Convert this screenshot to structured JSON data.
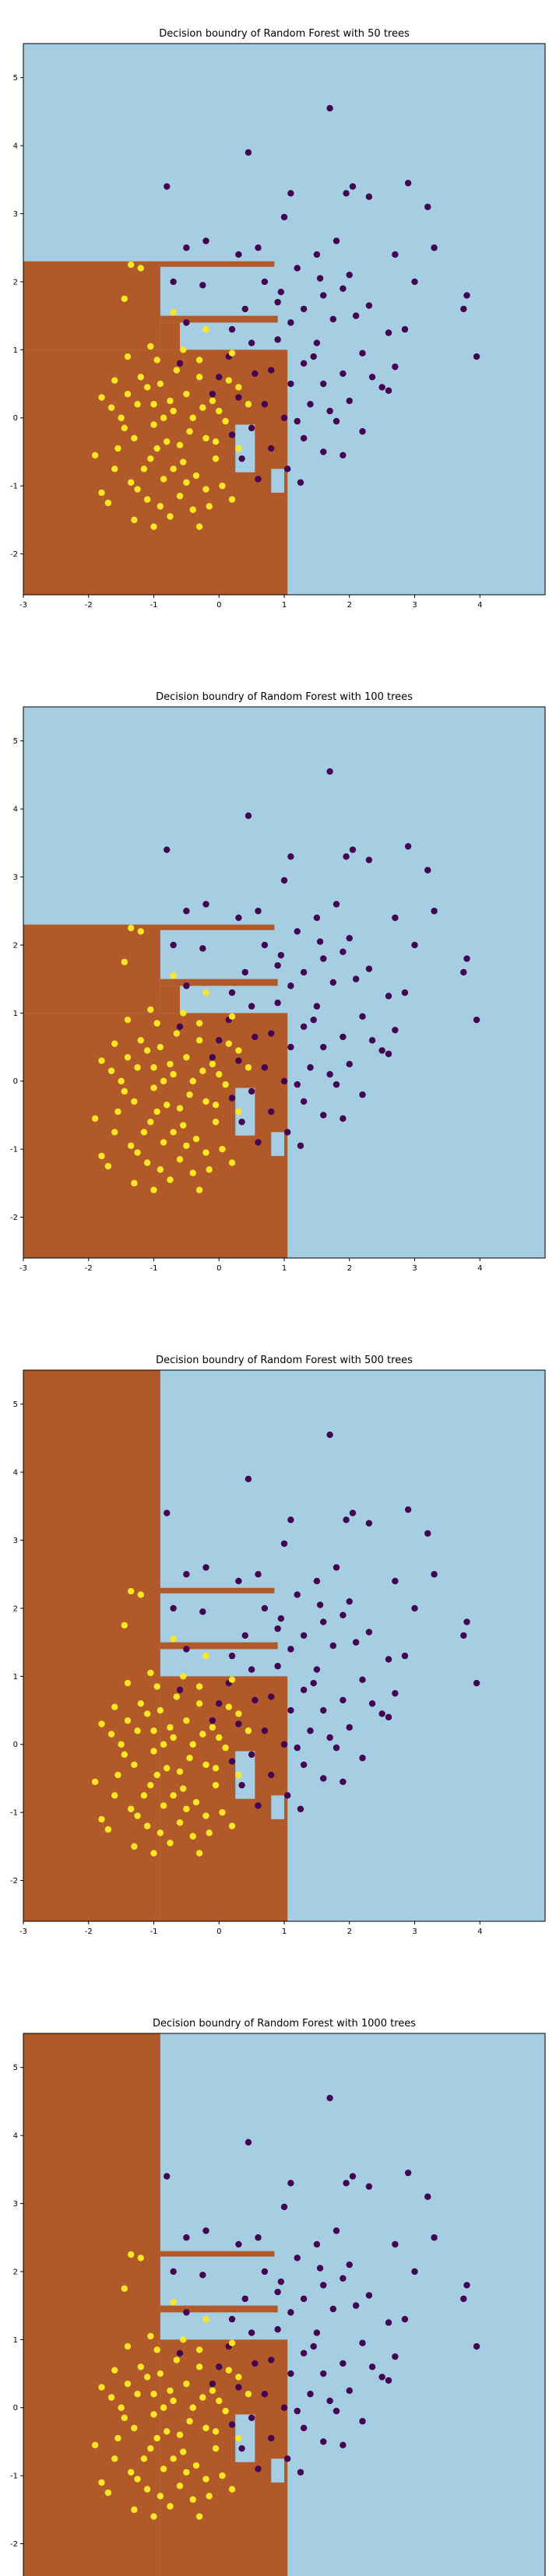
{
  "figure": {
    "background": "#ffffff"
  },
  "colors": {
    "region_class0": "#a6cee3",
    "region_class1": "#b15928",
    "point_class0": "#440154",
    "point_class1": "#fde725",
    "point_edge": "#3b0f4f"
  },
  "chart_data": [
    {
      "type": "scatter",
      "title": "Decision boundry of Random Forest with 50 trees",
      "xlim": [
        -3,
        5
      ],
      "ylim": [
        -2.6,
        5.5
      ],
      "xticks": [
        "-3",
        "-2",
        "-1",
        "0",
        "1",
        "2",
        "3",
        "4"
      ],
      "yticks": [
        "-2",
        "-1",
        "0",
        "1",
        "2",
        "3",
        "4",
        "5"
      ],
      "grid": false,
      "legend": "none",
      "regions": [
        {
          "class": 1,
          "x": [
            -3,
            1.05
          ],
          "y": [
            -2.6,
            1.0
          ]
        },
        {
          "class": 1,
          "x": [
            -3,
            -0.9
          ],
          "y": [
            1.0,
            2.3
          ]
        },
        {
          "class": 1,
          "x": [
            -0.9,
            0.85
          ],
          "y": [
            2.22,
            2.3
          ]
        },
        {
          "class": 1,
          "x": [
            -0.9,
            0.9
          ],
          "y": [
            1.4,
            1.5
          ]
        },
        {
          "class": 1,
          "x": [
            -0.9,
            -0.6
          ],
          "y": [
            1.0,
            1.4
          ]
        },
        {
          "class": 0,
          "x": [
            0.25,
            0.55
          ],
          "y": [
            -0.8,
            -0.1
          ]
        },
        {
          "class": 0,
          "x": [
            0.8,
            1.0
          ],
          "y": [
            -1.1,
            -0.75
          ]
        }
      ]
    },
    {
      "type": "scatter",
      "title": "Decision boundry of Random Forest with 100 trees",
      "xlim": [
        -3,
        5
      ],
      "ylim": [
        -2.6,
        5.5
      ],
      "xticks": [
        "-3",
        "-2",
        "-1",
        "0",
        "1",
        "2",
        "3",
        "4"
      ],
      "yticks": [
        "-2",
        "-1",
        "0",
        "1",
        "2",
        "3",
        "4",
        "5"
      ],
      "grid": false,
      "legend": "none",
      "regions": [
        {
          "class": 1,
          "x": [
            -3,
            1.05
          ],
          "y": [
            -2.6,
            1.0
          ]
        },
        {
          "class": 1,
          "x": [
            -3,
            -0.9
          ],
          "y": [
            1.0,
            2.3
          ]
        },
        {
          "class": 1,
          "x": [
            -0.9,
            0.85
          ],
          "y": [
            2.22,
            2.3
          ]
        },
        {
          "class": 1,
          "x": [
            -0.9,
            0.9
          ],
          "y": [
            1.4,
            1.5
          ]
        },
        {
          "class": 1,
          "x": [
            -0.9,
            -0.6
          ],
          "y": [
            1.0,
            1.4
          ]
        },
        {
          "class": 0,
          "x": [
            0.25,
            0.55
          ],
          "y": [
            -0.8,
            -0.1
          ]
        },
        {
          "class": 0,
          "x": [
            0.8,
            1.0
          ],
          "y": [
            -1.1,
            -0.75
          ]
        }
      ]
    },
    {
      "type": "scatter",
      "title": "Decision boundry of Random Forest with 500 trees",
      "xlim": [
        -3,
        5
      ],
      "ylim": [
        -2.6,
        5.5
      ],
      "xticks": [
        "-3",
        "-2",
        "-1",
        "0",
        "1",
        "2",
        "3",
        "4"
      ],
      "yticks": [
        "-2",
        "-1",
        "0",
        "1",
        "2",
        "3",
        "4",
        "5"
      ],
      "grid": false,
      "legend": "none",
      "regions": [
        {
          "class": 1,
          "x": [
            -3,
            -0.9
          ],
          "y": [
            -2.6,
            5.5
          ]
        },
        {
          "class": 1,
          "x": [
            -0.9,
            1.05
          ],
          "y": [
            -2.6,
            1.0
          ]
        },
        {
          "class": 1,
          "x": [
            -0.9,
            0.85
          ],
          "y": [
            2.22,
            2.3
          ]
        },
        {
          "class": 1,
          "x": [
            -0.9,
            0.9
          ],
          "y": [
            1.4,
            1.5
          ]
        },
        {
          "class": 0,
          "x": [
            0.25,
            0.55
          ],
          "y": [
            -0.8,
            -0.1
          ]
        },
        {
          "class": 0,
          "x": [
            0.8,
            1.0
          ],
          "y": [
            -1.1,
            -0.75
          ]
        }
      ]
    },
    {
      "type": "scatter",
      "title": "Decision boundry of Random Forest with 1000 trees",
      "xlim": [
        -3,
        5
      ],
      "ylim": [
        -2.6,
        5.5
      ],
      "xticks": [
        "-3",
        "-2",
        "-1",
        "0",
        "1",
        "2",
        "3",
        "4"
      ],
      "yticks": [
        "-2",
        "-1",
        "0",
        "1",
        "2",
        "3",
        "4",
        "5"
      ],
      "grid": false,
      "legend": "none",
      "regions": [
        {
          "class": 1,
          "x": [
            -3,
            -0.9
          ],
          "y": [
            -2.6,
            5.5
          ]
        },
        {
          "class": 1,
          "x": [
            -0.9,
            1.05
          ],
          "y": [
            -2.6,
            1.0
          ]
        },
        {
          "class": 1,
          "x": [
            -0.9,
            0.85
          ],
          "y": [
            2.22,
            2.3
          ]
        },
        {
          "class": 1,
          "x": [
            -0.9,
            0.9
          ],
          "y": [
            1.4,
            1.5
          ]
        },
        {
          "class": 0,
          "x": [
            0.25,
            0.55
          ],
          "y": [
            -0.8,
            -0.1
          ]
        },
        {
          "class": 0,
          "x": [
            0.8,
            1.0
          ],
          "y": [
            -1.1,
            -0.75
          ]
        }
      ]
    }
  ],
  "points": {
    "class0": [
      [
        1.7,
        4.55
      ],
      [
        0.45,
        3.9
      ],
      [
        -0.8,
        3.4
      ],
      [
        2.05,
        3.4
      ],
      [
        2.9,
        3.45
      ],
      [
        1.1,
        3.3
      ],
      [
        1.95,
        3.3
      ],
      [
        2.3,
        3.25
      ],
      [
        3.2,
        3.1
      ],
      [
        1.0,
        2.95
      ],
      [
        3.3,
        2.5
      ],
      [
        1.8,
        2.6
      ],
      [
        2.7,
        2.4
      ],
      [
        0.6,
        2.5
      ],
      [
        -0.5,
        2.5
      ],
      [
        -0.2,
        2.6
      ],
      [
        1.5,
        2.4
      ],
      [
        0.3,
        2.4
      ],
      [
        2.0,
        2.1
      ],
      [
        3.0,
        2.0
      ],
      [
        1.2,
        2.2
      ],
      [
        -0.7,
        2.0
      ],
      [
        0.7,
        2.0
      ],
      [
        1.9,
        1.9
      ],
      [
        1.6,
        1.8
      ],
      [
        3.8,
        1.8
      ],
      [
        2.3,
        1.65
      ],
      [
        3.75,
        1.6
      ],
      [
        0.9,
        1.7
      ],
      [
        1.3,
        1.6
      ],
      [
        2.6,
        1.25
      ],
      [
        0.2,
        1.3
      ],
      [
        -0.5,
        1.4
      ],
      [
        1.1,
        1.4
      ],
      [
        1.75,
        1.45
      ],
      [
        2.1,
        1.5
      ],
      [
        3.95,
        0.9
      ],
      [
        0.5,
        1.1
      ],
      [
        1.5,
        1.1
      ],
      [
        2.2,
        0.95
      ],
      [
        1.3,
        0.8
      ],
      [
        0.8,
        0.7
      ],
      [
        1.9,
        0.65
      ],
      [
        0.0,
        0.6
      ],
      [
        -0.6,
        0.8
      ],
      [
        1.6,
        0.5
      ],
      [
        2.5,
        0.45
      ],
      [
        1.1,
        0.5
      ],
      [
        0.3,
        0.3
      ],
      [
        0.7,
        0.2
      ],
      [
        1.4,
        0.2
      ],
      [
        2.0,
        0.25
      ],
      [
        2.6,
        0.4
      ],
      [
        1.0,
        0.0
      ],
      [
        1.8,
        -0.05
      ],
      [
        0.5,
        -0.15
      ],
      [
        1.3,
        -0.3
      ],
      [
        2.2,
        -0.2
      ],
      [
        0.8,
        -0.45
      ],
      [
        1.6,
        -0.5
      ],
      [
        0.35,
        -0.6
      ],
      [
        1.05,
        -0.75
      ],
      [
        1.9,
        -0.55
      ],
      [
        0.6,
        -0.9
      ],
      [
        1.25,
        -0.95
      ],
      [
        0.2,
        -0.25
      ],
      [
        -0.1,
        0.35
      ],
      [
        0.9,
        1.15
      ],
      [
        1.45,
        0.9
      ],
      [
        2.35,
        0.6
      ],
      [
        0.15,
        0.9
      ],
      [
        1.7,
        0.1
      ],
      [
        0.55,
        0.65
      ],
      [
        2.7,
        0.75
      ],
      [
        1.2,
        -0.05
      ],
      [
        0.95,
        1.85
      ],
      [
        0.4,
        1.6
      ],
      [
        -0.25,
        1.95
      ],
      [
        2.85,
        1.3
      ],
      [
        1.55,
        2.05
      ]
    ],
    "class1": [
      [
        -1.35,
        2.25
      ],
      [
        -1.2,
        2.2
      ],
      [
        -1.45,
        1.75
      ],
      [
        -0.7,
        1.55
      ],
      [
        -0.2,
        1.3
      ],
      [
        -1.05,
        1.05
      ],
      [
        -1.4,
        0.9
      ],
      [
        -0.55,
        1.0
      ],
      [
        -1.6,
        0.55
      ],
      [
        -1.1,
        0.45
      ],
      [
        -0.3,
        0.85
      ],
      [
        0.2,
        0.95
      ],
      [
        -1.8,
        0.3
      ],
      [
        -0.9,
        0.5
      ],
      [
        -0.5,
        0.35
      ],
      [
        -1.25,
        0.2
      ],
      [
        -0.7,
        0.1
      ],
      [
        -0.1,
        0.25
      ],
      [
        -1.5,
        0.0
      ],
      [
        -1.0,
        -0.1
      ],
      [
        -0.4,
        0.0
      ],
      [
        0.1,
        -0.05
      ],
      [
        -1.9,
        -0.55
      ],
      [
        -1.3,
        -0.3
      ],
      [
        -0.8,
        -0.35
      ],
      [
        -0.2,
        -0.3
      ],
      [
        -1.6,
        -0.75
      ],
      [
        -1.05,
        -0.6
      ],
      [
        -0.55,
        -0.65
      ],
      [
        -0.05,
        -0.6
      ],
      [
        -1.35,
        -0.95
      ],
      [
        -0.85,
        -0.9
      ],
      [
        -0.35,
        -0.85
      ],
      [
        0.05,
        -1.0
      ],
      [
        -1.1,
        -1.2
      ],
      [
        -0.6,
        -1.15
      ],
      [
        -0.15,
        -1.3
      ],
      [
        -1.8,
        -1.1
      ],
      [
        -0.75,
        -1.45
      ],
      [
        -0.3,
        -1.6
      ],
      [
        -1.3,
        -1.5
      ],
      [
        0.2,
        -1.2
      ],
      [
        -1.7,
        -1.25
      ],
      [
        -0.95,
        -0.45
      ],
      [
        -0.45,
        -0.2
      ],
      [
        -1.2,
        0.6
      ],
      [
        -0.65,
        0.7
      ],
      [
        -1.55,
        -0.45
      ],
      [
        0.3,
        0.45
      ],
      [
        -0.9,
        -1.3
      ],
      [
        -1.45,
        -0.15
      ],
      [
        -0.2,
        -1.05
      ],
      [
        0.15,
        0.55
      ],
      [
        -0.6,
        -0.4
      ],
      [
        -1.0,
        0.2
      ],
      [
        -0.3,
        0.6
      ],
      [
        -1.15,
        -0.75
      ],
      [
        -0.75,
        0.25
      ],
      [
        -0.05,
        -0.35
      ],
      [
        -1.65,
        0.15
      ],
      [
        0.45,
        0.2
      ],
      [
        -0.4,
        -1.35
      ],
      [
        -1.25,
        -1.05
      ],
      [
        -0.85,
        0.0
      ],
      [
        0.0,
        0.1
      ],
      [
        -0.5,
        -0.95
      ],
      [
        -1.4,
        0.35
      ],
      [
        -0.7,
        -0.75
      ],
      [
        0.3,
        -0.45
      ],
      [
        -1.0,
        -1.6
      ],
      [
        -0.25,
        0.15
      ],
      [
        -0.95,
        0.85
      ]
    ]
  }
}
